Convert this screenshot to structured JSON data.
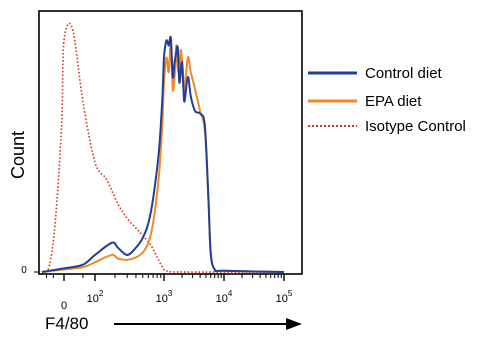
{
  "chart_data": {
    "type": "line",
    "subtype": "flow-cytometry-histogram",
    "ylabel": "Count",
    "xlabel": "F4/80",
    "y_ticks": [
      "0"
    ],
    "x_ticks": [
      {
        "base": "0",
        "exp": ""
      },
      {
        "base": "10",
        "exp": "2"
      },
      {
        "base": "10",
        "exp": "3"
      },
      {
        "base": "10",
        "exp": "4"
      },
      {
        "base": "10",
        "exp": "5"
      }
    ],
    "x_scale": "biexponential",
    "ylim": [
      0,
      100
    ],
    "grid": false,
    "legend_position": "right",
    "series": [
      {
        "name": "Control diet",
        "color": "#1f3f99",
        "style": "solid",
        "points": [
          [
            "-150",
            0
          ],
          [
            "-50",
            0.8
          ],
          [
            "0",
            1.5
          ],
          [
            "50",
            3
          ],
          [
            "100",
            7
          ],
          [
            "180",
            12
          ],
          [
            "220",
            10
          ],
          [
            "300",
            7
          ],
          [
            "400",
            10
          ],
          [
            "500",
            14
          ],
          [
            "600",
            20
          ],
          [
            "700",
            30
          ],
          [
            "850",
            50
          ],
          [
            "950",
            72
          ],
          [
            "1000",
            88
          ],
          [
            "1100",
            95
          ],
          [
            "1200",
            93
          ],
          [
            "1300",
            96
          ],
          [
            "1400",
            80
          ],
          [
            "1500",
            86
          ],
          [
            "1600",
            90
          ],
          [
            "1700",
            92
          ],
          [
            "1800",
            78
          ],
          [
            "1900",
            82
          ],
          [
            "2000",
            86
          ],
          [
            "2100",
            76
          ],
          [
            "2200",
            70
          ],
          [
            "2500",
            80
          ],
          [
            "2800",
            72
          ],
          [
            "3300",
            66
          ],
          [
            "4000",
            65
          ],
          [
            "4800",
            60
          ],
          [
            "5500",
            30
          ],
          [
            "6000",
            8
          ],
          [
            "7000",
            1
          ],
          [
            "10000",
            0.5
          ],
          [
            "100000",
            0
          ]
        ]
      },
      {
        "name": "EPA diet",
        "color": "#f08a24",
        "style": "solid",
        "points": [
          [
            "-150",
            0
          ],
          [
            "-50",
            0.5
          ],
          [
            "0",
            1
          ],
          [
            "50",
            2
          ],
          [
            "100",
            4
          ],
          [
            "180",
            7
          ],
          [
            "220",
            5.5
          ],
          [
            "300",
            5
          ],
          [
            "400",
            6
          ],
          [
            "500",
            8
          ],
          [
            "600",
            12
          ],
          [
            "700",
            20
          ],
          [
            "850",
            40
          ],
          [
            "950",
            62
          ],
          [
            "1000",
            78
          ],
          [
            "1100",
            88
          ],
          [
            "1200",
            82
          ],
          [
            "1300",
            94
          ],
          [
            "1400",
            75
          ],
          [
            "1500",
            80
          ],
          [
            "1600",
            93
          ],
          [
            "1700",
            83
          ],
          [
            "1800",
            83
          ],
          [
            "1900",
            91
          ],
          [
            "2000",
            87
          ],
          [
            "2100",
            80
          ],
          [
            "2200",
            74
          ],
          [
            "2500",
            88
          ],
          [
            "2800",
            82
          ],
          [
            "3300",
            75
          ],
          [
            "4000",
            66
          ],
          [
            "4800",
            58
          ],
          [
            "5500",
            30
          ],
          [
            "6000",
            8
          ],
          [
            "7000",
            1
          ],
          [
            "10000",
            0.5
          ],
          [
            "100000",
            0
          ]
        ]
      },
      {
        "name": "Isotype Control",
        "color": "#d9362b",
        "style": "dotted",
        "points": [
          [
            "-150",
            0
          ],
          [
            "-80",
            2
          ],
          [
            "-40",
            20
          ],
          [
            "-10",
            60
          ],
          [
            "0",
            95
          ],
          [
            "20",
            100
          ],
          [
            "50",
            70
          ],
          [
            "100",
            45
          ],
          [
            "150",
            38
          ],
          [
            "220",
            28
          ],
          [
            "300",
            22
          ],
          [
            "400",
            18
          ],
          [
            "500",
            15
          ],
          [
            "650",
            11
          ],
          [
            "800",
            6
          ],
          [
            "950",
            2
          ],
          [
            "1100",
            0.5
          ],
          [
            "2000",
            0
          ],
          [
            "100000",
            0
          ]
        ]
      }
    ]
  }
}
